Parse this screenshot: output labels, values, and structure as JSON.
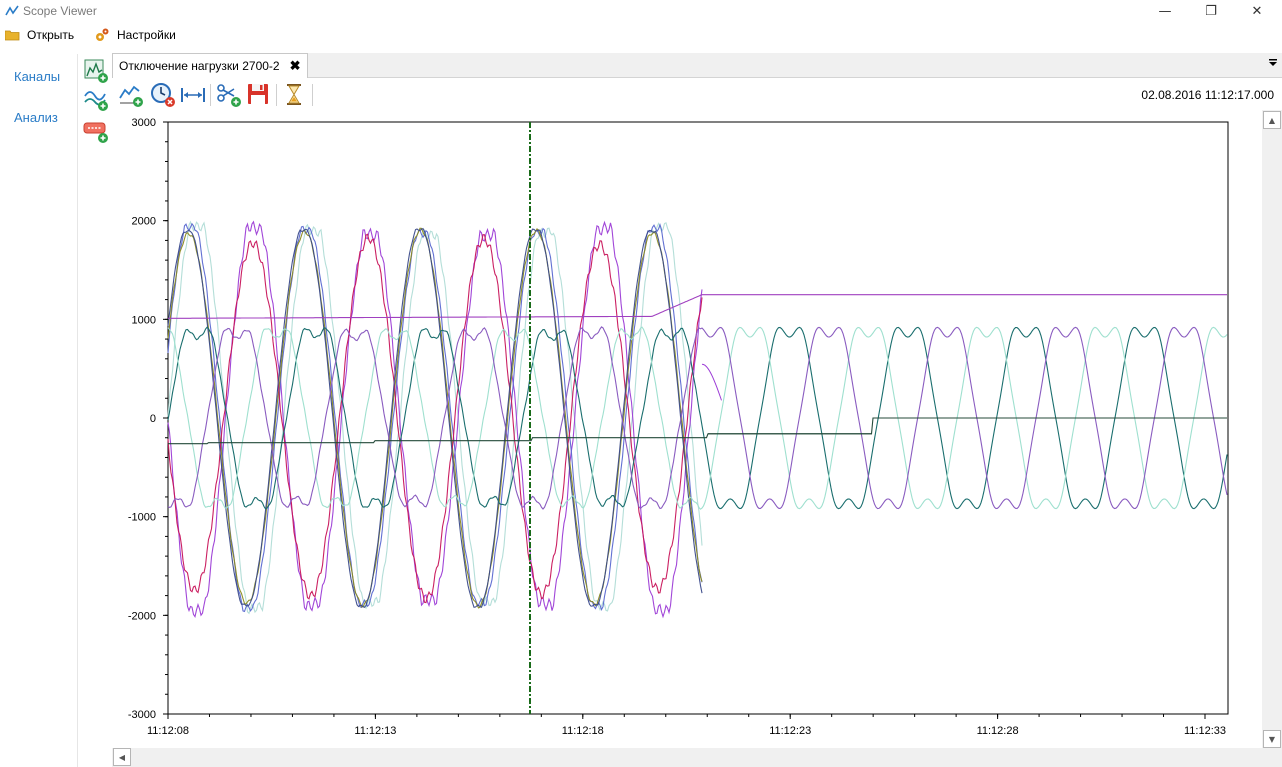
{
  "window": {
    "title": "Scope Viewer",
    "minimize": "—",
    "restore": "❐",
    "close": "✕"
  },
  "menu": {
    "open": "Открыть",
    "settings": "Настройки"
  },
  "sidebar": {
    "channels": "Каналы",
    "analysis": "Анализ"
  },
  "tabs": [
    {
      "label": "Отключение нагрузки 2700-2",
      "close": "✖"
    }
  ],
  "toolbar": {
    "timestamp": "02.08.2016 11:12:17.000"
  },
  "icons": [
    "chart-line-icon",
    "add-channel-icon",
    "add-analysis-icon",
    "add-signal-icon",
    "clock-remove-icon",
    "measure-interval-icon",
    "cut-add-icon",
    "save-icon",
    "hourglass-icon",
    "dropdown-arrow-icon",
    "folder-icon",
    "gears-icon"
  ],
  "colors": {
    "accent": "#2a7cc7",
    "cursor": "#1a6b1a"
  },
  "chart_data": {
    "type": "line",
    "ylim": [
      -3000,
      3000
    ],
    "yticks": [
      "3000",
      "2000",
      "1000",
      "0",
      "-1000",
      "-2000",
      "-3000"
    ],
    "xticks": [
      "11:12:08",
      "11:12:13",
      "11:12:18",
      "11:12:23",
      "11:12:28",
      "11:12:33"
    ],
    "grid": true,
    "cursor_time": "11:12:17"
  }
}
